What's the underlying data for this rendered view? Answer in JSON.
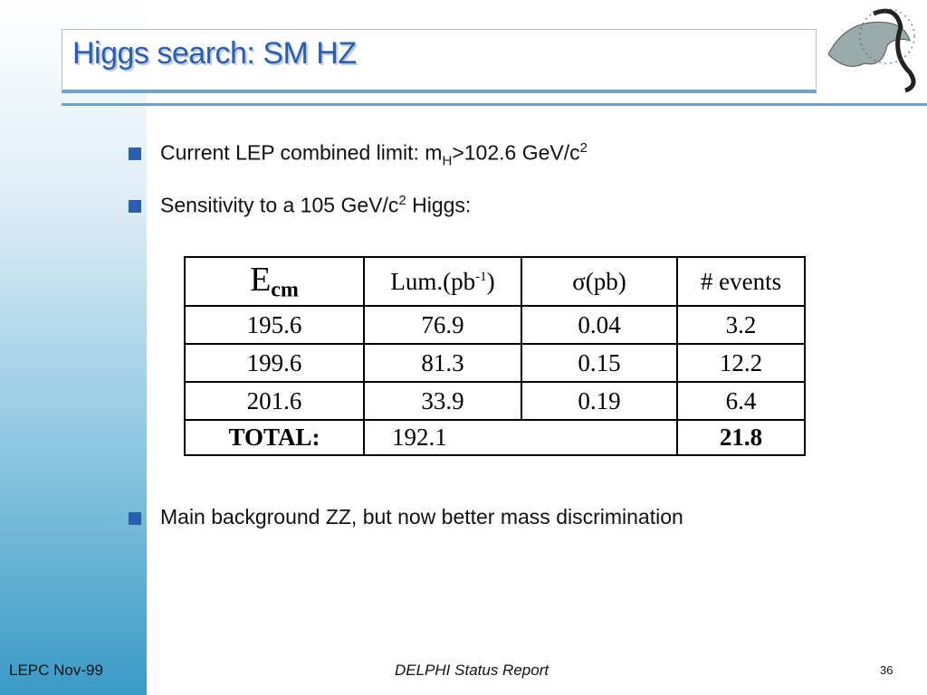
{
  "header": {
    "title": "Higgs search: SM HZ"
  },
  "bullets": [
    {
      "parts": [
        "Current LEP combined limit: m",
        "H",
        ">102.6 GeV/c",
        "2"
      ]
    },
    {
      "parts": [
        "Sensitivity to a 105 GeV/c",
        "2",
        " Higgs:"
      ]
    },
    {
      "parts": [
        "Main background ZZ, but now better mass discrimination"
      ]
    }
  ],
  "table": {
    "header": [
      [
        "E",
        "cm"
      ],
      [
        "Lum.(pb",
        "-1",
        ")"
      ],
      [
        "σ(pb)"
      ],
      [
        "# events"
      ]
    ],
    "rows": [
      [
        "195.6",
        "76.9",
        "0.04",
        "3.2"
      ],
      [
        "199.6",
        "81.3",
        "0.15",
        "12.2"
      ],
      [
        "201.6",
        "33.9",
        "0.19",
        "6.4"
      ]
    ],
    "total": [
      "TOTAL:",
      "192.1",
      "21.8"
    ]
  },
  "footer": {
    "left": "LEPC Nov-99",
    "center": "DELPHI Status Report",
    "page": "36"
  }
}
